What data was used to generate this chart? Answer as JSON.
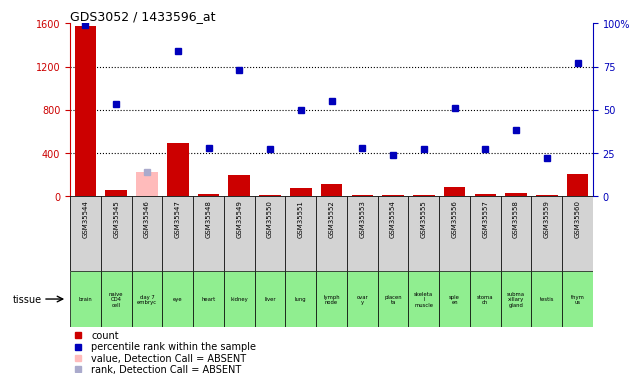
{
  "title": "GDS3052 / 1433596_at",
  "samples": [
    "GSM35544",
    "GSM35545",
    "GSM35546",
    "GSM35547",
    "GSM35548",
    "GSM35549",
    "GSM35550",
    "GSM35551",
    "GSM35552",
    "GSM35553",
    "GSM35554",
    "GSM35555",
    "GSM35556",
    "GSM35557",
    "GSM35558",
    "GSM35559",
    "GSM35560"
  ],
  "tissues": [
    "brain",
    "naive\nCD4\ncell",
    "day 7\nembryc",
    "eye",
    "heart",
    "kidney",
    "liver",
    "lung",
    "lymph\nnode",
    "ovar\ny",
    "placen\nta",
    "skeleta\nl\nmuscle",
    "sple\nen",
    "stoma\nch",
    "subma\nxillary\ngland",
    "testis",
    "thym\nus"
  ],
  "count_values": [
    1580,
    55,
    0,
    490,
    15,
    190,
    10,
    75,
    115,
    8,
    10,
    8,
    80,
    15,
    25,
    8,
    200
  ],
  "rank_values": [
    99,
    53,
    null,
    84,
    28,
    73,
    27,
    50,
    55,
    28,
    24,
    27,
    51,
    27,
    38,
    22,
    77
  ],
  "absent_count_value": 220,
  "absent_rank_value": 14,
  "absent_idx": 2,
  "ylim_left": [
    0,
    1600
  ],
  "ylim_right": [
    0,
    100
  ],
  "yticks_left": [
    0,
    400,
    800,
    1200,
    1600
  ],
  "yticks_right": [
    0,
    25,
    50,
    75,
    100
  ],
  "grid_values": [
    400,
    800,
    1200
  ],
  "bar_color": "#cc0000",
  "dot_color": "#0000bb",
  "absent_bar_color": "#ffbbbb",
  "absent_dot_color": "#aaaacc",
  "left_axis_color": "#cc0000",
  "right_axis_color": "#0000bb",
  "tissue_color": "#90ee90",
  "sample_box_color": "#d3d3d3",
  "legend_items": [
    {
      "color": "#cc0000",
      "label": "count"
    },
    {
      "color": "#0000bb",
      "label": "percentile rank within the sample"
    },
    {
      "color": "#ffbbbb",
      "label": "value, Detection Call = ABSENT"
    },
    {
      "color": "#aaaacc",
      "label": "rank, Detection Call = ABSENT"
    }
  ]
}
